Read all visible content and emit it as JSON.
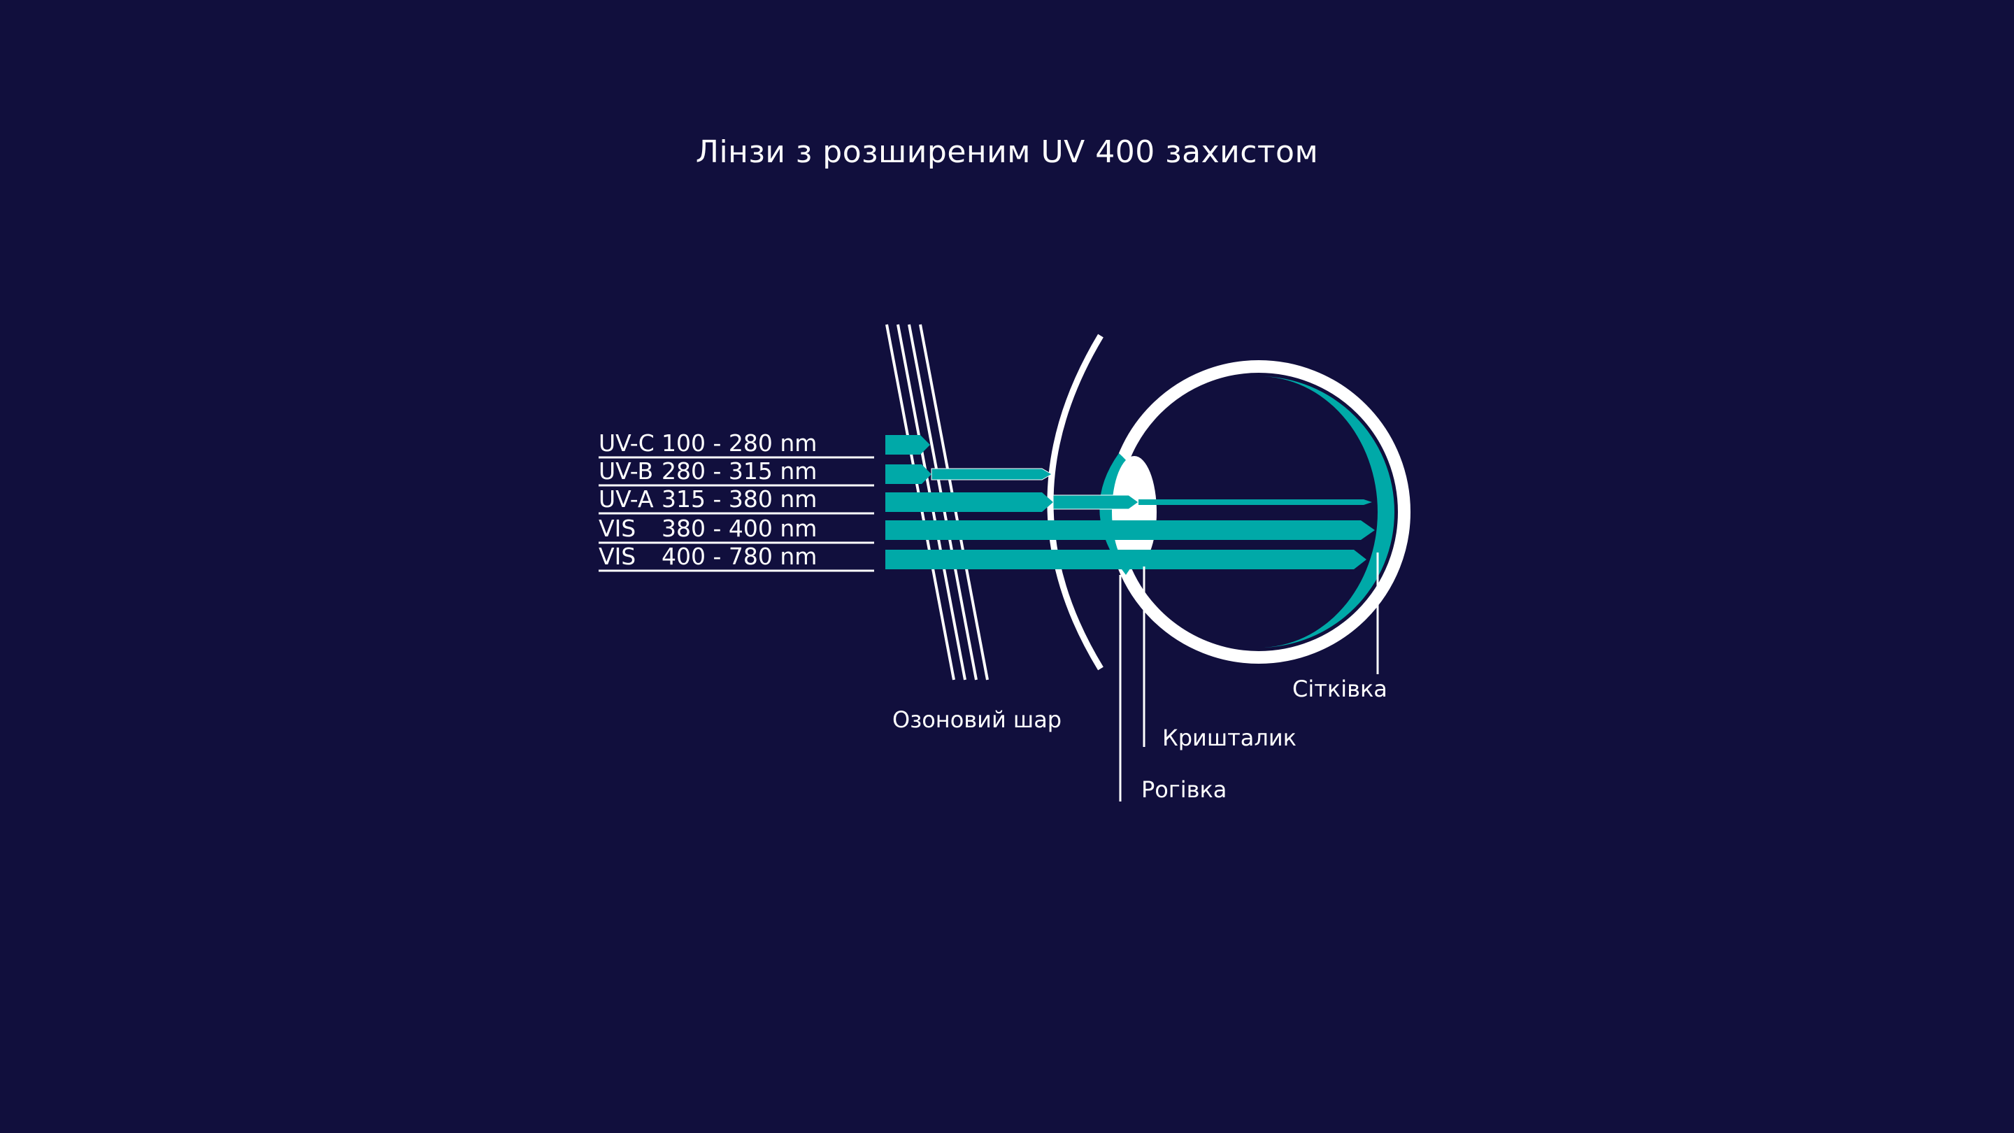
{
  "title": "Лінзи з розширеним UV 400 захистом",
  "bands": [
    {
      "name": "UV-C",
      "range": "100 - 280 nm"
    },
    {
      "name": "UV-B",
      "range": "280 - 315 nm"
    },
    {
      "name": "UV-A",
      "range": "315 - 380 nm"
    },
    {
      "name": "VIS",
      "range": "380 - 400 nm"
    },
    {
      "name": "VIS",
      "range": "400 - 780 nm"
    }
  ],
  "parts": {
    "ozone": "Озоновий шар",
    "lens": "Кришталик",
    "cornea": "Рогівка",
    "retina": "Сітківка"
  },
  "colors": {
    "background": "#110f3d",
    "teal": "#00a9a8",
    "white": "#ffffff"
  }
}
